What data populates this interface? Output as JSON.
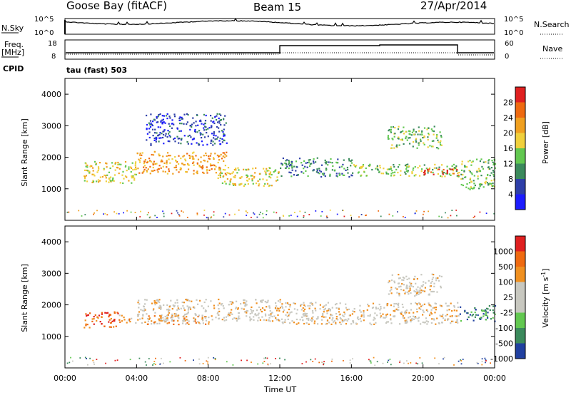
{
  "header": {
    "station": "Goose Bay (fitACF)",
    "beam": "Beam 15",
    "date": "27/Apr/2014"
  },
  "sky_panel": {
    "left_label": "N.Sky",
    "left_ticks": [
      "10^5",
      "10^0"
    ],
    "right_ticks": [
      "10^5",
      "10^0"
    ],
    "right_label": "N.Search"
  },
  "freq_panel": {
    "left_label_line1": "Freq.",
    "left_label_line2": "[MHz]",
    "left_ticks": [
      "18",
      "8"
    ],
    "right_ticks": [
      "60",
      "0"
    ],
    "right_label": "Nave",
    "cpid_label": "CPID",
    "cpid_value": "tau (fast) 503"
  },
  "x_axis": {
    "label": "Time UT",
    "ticks": [
      "00:00",
      "04:00",
      "08:00",
      "12:00",
      "16:00",
      "20:00",
      "00:00"
    ]
  },
  "colors": {
    "power": [
      "#1c1cff",
      "#2e3fa8",
      "#3b8a5c",
      "#62c850",
      "#f0d03c",
      "#f0a020",
      "#ef6a10",
      "#e02020"
    ],
    "velocity": [
      "#e02020",
      "#ef6a10",
      "#f09020",
      "#c8c8c0",
      "#c8c8c0",
      "#62c850",
      "#3b8a5c",
      "#2040a0"
    ]
  },
  "chart_data": [
    {
      "type": "heatmap",
      "name": "Power",
      "ylabel": "Slant Range [km]",
      "xlabel": "",
      "ylim": [
        0,
        4500
      ],
      "y_ticks": [
        "1000",
        "2000",
        "3000",
        "4000"
      ],
      "colorbar": {
        "label": "Power [dB]",
        "ticks": [
          "4",
          "8",
          "12",
          "16",
          "20",
          "24",
          "28"
        ]
      },
      "bands": [
        {
          "t0": 1.0,
          "t1": 4.0,
          "r0": 1200,
          "r1": 1900,
          "level": 4
        },
        {
          "t0": 4.0,
          "t1": 9.0,
          "r0": 1500,
          "r1": 2200,
          "level": 5
        },
        {
          "t0": 8.5,
          "t1": 12.0,
          "r0": 1100,
          "r1": 1700,
          "level": 4
        },
        {
          "t0": 12.0,
          "t1": 16.0,
          "r0": 1400,
          "r1": 2000,
          "level": 2
        },
        {
          "t0": 16.0,
          "t1": 22.0,
          "r0": 1400,
          "r1": 1800,
          "level": 3
        },
        {
          "t0": 20.0,
          "t1": 22.0,
          "r0": 1450,
          "r1": 1650,
          "level": 7
        },
        {
          "t0": 18.0,
          "t1": 21.0,
          "r0": 2300,
          "r1": 3000,
          "level": 3
        },
        {
          "t0": 22.0,
          "t1": 24.0,
          "r0": 1000,
          "r1": 2000,
          "level": 3
        },
        {
          "t0": 4.5,
          "t1": 9.0,
          "r0": 2400,
          "r1": 3400,
          "level": 1
        }
      ]
    },
    {
      "type": "heatmap",
      "name": "Velocity",
      "ylabel": "Slant Range [km]",
      "xlabel": "Time UT",
      "ylim": [
        0,
        4500
      ],
      "y_ticks": [
        "1000",
        "2000",
        "3000",
        "4000"
      ],
      "colorbar": {
        "label": "Velocity [m s^-1]",
        "ticks": [
          "1000",
          "500",
          "100",
          "25",
          "-25",
          "-100",
          "-500",
          "-1000"
        ]
      },
      "bands": [
        {
          "t0": 1.0,
          "t1": 3.0,
          "r0": 1300,
          "r1": 1800,
          "level": 1
        },
        {
          "t0": 3.0,
          "t1": 8.0,
          "r0": 1400,
          "r1": 1700,
          "level": 2
        },
        {
          "t0": 4.0,
          "t1": 12.0,
          "r0": 1500,
          "r1": 2200,
          "level": 3
        },
        {
          "t0": 12.0,
          "t1": 22.0,
          "r0": 1400,
          "r1": 2100,
          "level": 3
        },
        {
          "t0": 18.0,
          "t1": 21.0,
          "r0": 2300,
          "r1": 3000,
          "level": 3
        },
        {
          "t0": 22.0,
          "t1": 24.0,
          "r0": 1500,
          "r1": 2000,
          "level": 6
        }
      ]
    }
  ]
}
